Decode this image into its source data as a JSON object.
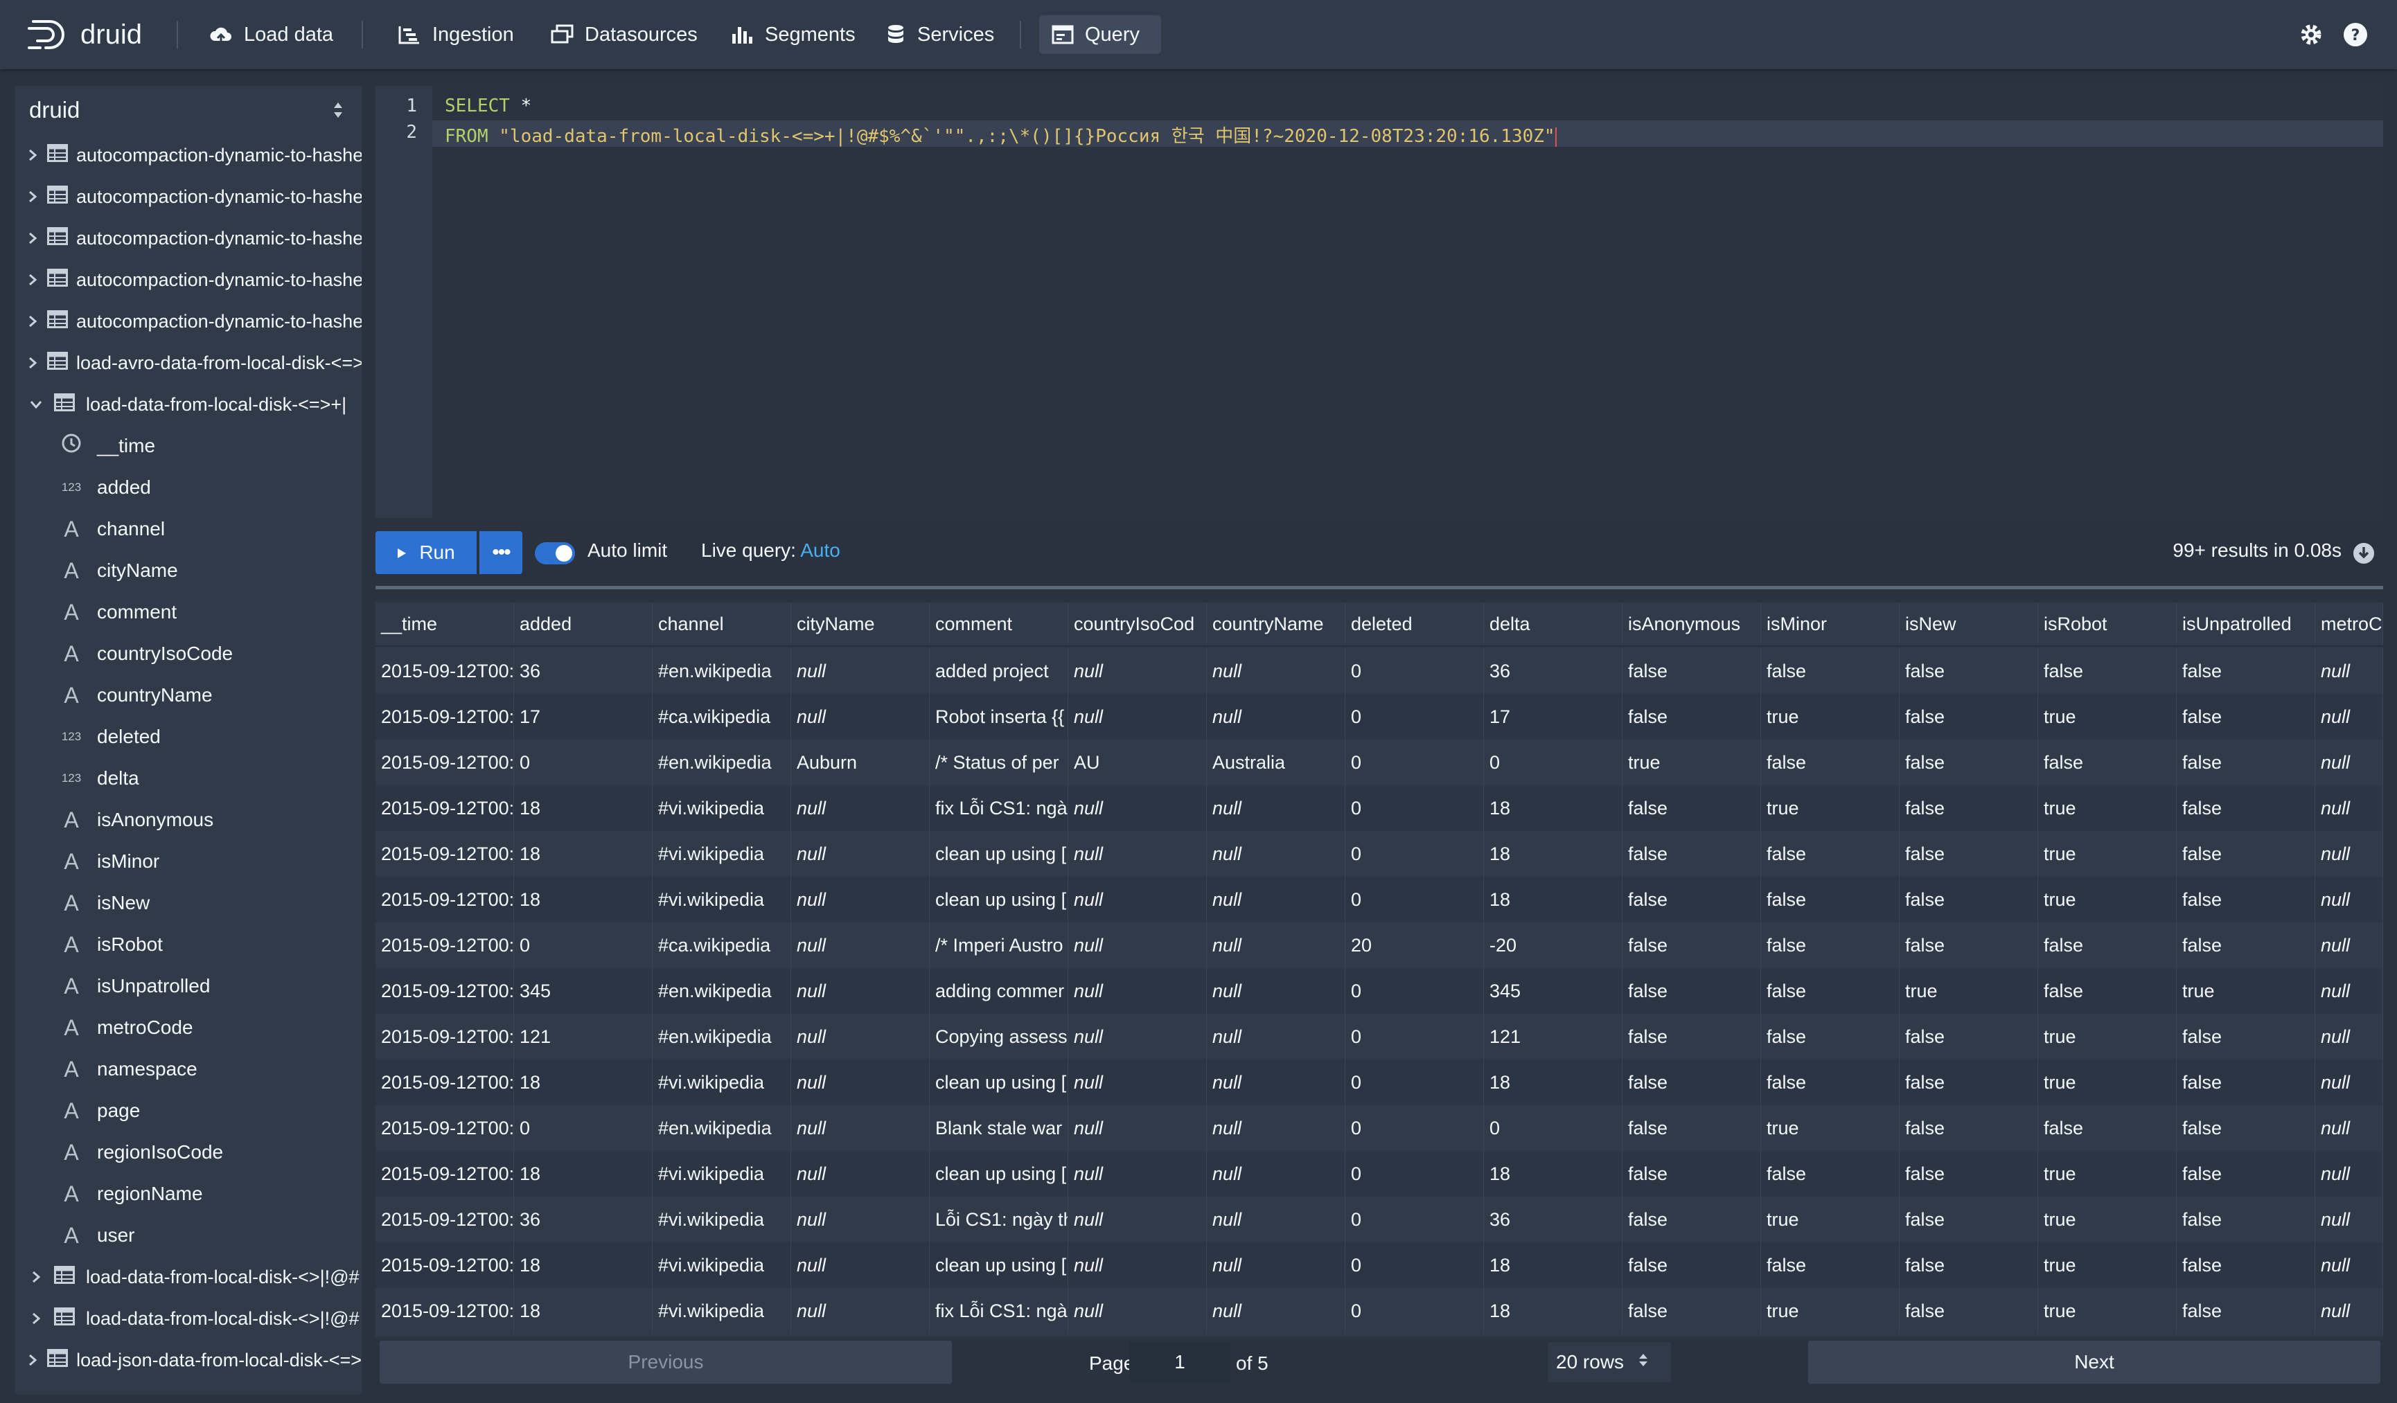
{
  "nav": {
    "logo": "druid",
    "items": [
      "Load data",
      "Ingestion",
      "Datasources",
      "Segments",
      "Services",
      "Query"
    ],
    "active": "Query"
  },
  "sidebar": {
    "title": "druid",
    "datasources_top": [
      "autocompaction-dynamic-to-hashed",
      "autocompaction-dynamic-to-hashed",
      "autocompaction-dynamic-to-hashed",
      "autocompaction-dynamic-to-hashed",
      "autocompaction-dynamic-to-hashed",
      "load-avro-data-from-local-disk-<=>",
      "load-data-from-local-disk-<=>+|"
    ],
    "columns": [
      {
        "name": "__time",
        "type": "time"
      },
      {
        "name": "added",
        "type": "num"
      },
      {
        "name": "channel",
        "type": "str"
      },
      {
        "name": "cityName",
        "type": "str"
      },
      {
        "name": "comment",
        "type": "str"
      },
      {
        "name": "countryIsoCode",
        "type": "str"
      },
      {
        "name": "countryName",
        "type": "str"
      },
      {
        "name": "deleted",
        "type": "num"
      },
      {
        "name": "delta",
        "type": "num"
      },
      {
        "name": "isAnonymous",
        "type": "str"
      },
      {
        "name": "isMinor",
        "type": "str"
      },
      {
        "name": "isNew",
        "type": "str"
      },
      {
        "name": "isRobot",
        "type": "str"
      },
      {
        "name": "isUnpatrolled",
        "type": "str"
      },
      {
        "name": "metroCode",
        "type": "str"
      },
      {
        "name": "namespace",
        "type": "str"
      },
      {
        "name": "page",
        "type": "str"
      },
      {
        "name": "regionIsoCode",
        "type": "str"
      },
      {
        "name": "regionName",
        "type": "str"
      },
      {
        "name": "user",
        "type": "str"
      }
    ],
    "datasources_bottom": [
      "load-data-from-local-disk-<>|!@#",
      "load-data-from-local-disk-<>|!@#",
      "load-json-data-from-local-disk-<=>"
    ]
  },
  "editor": {
    "line1_kw": "SELECT",
    "line1_rest": " *",
    "line2_kw": "FROM",
    "line2_str": " \"load-data-from-local-disk-<=>+|!@#$%^&`'\"\".,:;\\*()[]{}Россия 한국 中国!?~2020-12-08T23:20:16.130Z\""
  },
  "toolbar": {
    "run_label": "Run",
    "more_label": "•••",
    "auto_limit_label": "Auto limit",
    "live_query_label": "Live query:",
    "live_query_value": "Auto",
    "results_summary": "99+ results in 0.08s"
  },
  "table": {
    "columns": [
      "__time",
      "added",
      "channel",
      "cityName",
      "comment",
      "countryIsoCod",
      "countryName",
      "deleted",
      "delta",
      "isAnonymous",
      "isMinor",
      "isNew",
      "isRobot",
      "isUnpatrolled",
      "metroC"
    ],
    "rows": [
      [
        "2015-09-12T00:",
        "36",
        "#en.wikipedia",
        "null",
        "added project",
        "null",
        "null",
        "0",
        "36",
        "false",
        "false",
        "false",
        "false",
        "false",
        "null"
      ],
      [
        "2015-09-12T00:",
        "17",
        "#ca.wikipedia",
        "null",
        "Robot inserta {{",
        "null",
        "null",
        "0",
        "17",
        "false",
        "true",
        "false",
        "true",
        "false",
        "null"
      ],
      [
        "2015-09-12T00:",
        "0",
        "#en.wikipedia",
        "Auburn",
        "/* Status of per",
        "AU",
        "Australia",
        "0",
        "0",
        "true",
        "false",
        "false",
        "false",
        "false",
        "null"
      ],
      [
        "2015-09-12T00:",
        "18",
        "#vi.wikipedia",
        "null",
        "fix Lỗi CS1: ngày",
        "null",
        "null",
        "0",
        "18",
        "false",
        "true",
        "false",
        "true",
        "false",
        "null"
      ],
      [
        "2015-09-12T00:",
        "18",
        "#vi.wikipedia",
        "null",
        "clean up using [",
        "null",
        "null",
        "0",
        "18",
        "false",
        "false",
        "false",
        "true",
        "false",
        "null"
      ],
      [
        "2015-09-12T00:",
        "18",
        "#vi.wikipedia",
        "null",
        "clean up using [",
        "null",
        "null",
        "0",
        "18",
        "false",
        "false",
        "false",
        "true",
        "false",
        "null"
      ],
      [
        "2015-09-12T00:",
        "0",
        "#ca.wikipedia",
        "null",
        "/* Imperi Austro",
        "null",
        "null",
        "20",
        "-20",
        "false",
        "false",
        "false",
        "false",
        "false",
        "null"
      ],
      [
        "2015-09-12T00:",
        "345",
        "#en.wikipedia",
        "null",
        "adding commer",
        "null",
        "null",
        "0",
        "345",
        "false",
        "false",
        "true",
        "false",
        "true",
        "null"
      ],
      [
        "2015-09-12T00:",
        "121",
        "#en.wikipedia",
        "null",
        "Copying assessi",
        "null",
        "null",
        "0",
        "121",
        "false",
        "false",
        "false",
        "true",
        "false",
        "null"
      ],
      [
        "2015-09-12T00:",
        "18",
        "#vi.wikipedia",
        "null",
        "clean up using [",
        "null",
        "null",
        "0",
        "18",
        "false",
        "false",
        "false",
        "true",
        "false",
        "null"
      ],
      [
        "2015-09-12T00:",
        "0",
        "#en.wikipedia",
        "null",
        "Blank stale war",
        "null",
        "null",
        "0",
        "0",
        "false",
        "true",
        "false",
        "false",
        "false",
        "null"
      ],
      [
        "2015-09-12T00:",
        "18",
        "#vi.wikipedia",
        "null",
        "clean up using [",
        "null",
        "null",
        "0",
        "18",
        "false",
        "false",
        "false",
        "true",
        "false",
        "null"
      ],
      [
        "2015-09-12T00:",
        "36",
        "#vi.wikipedia",
        "null",
        "Lỗi CS1: ngày th",
        "null",
        "null",
        "0",
        "36",
        "false",
        "true",
        "false",
        "true",
        "false",
        "null"
      ],
      [
        "2015-09-12T00:",
        "18",
        "#vi.wikipedia",
        "null",
        "clean up using [",
        "null",
        "null",
        "0",
        "18",
        "false",
        "false",
        "false",
        "true",
        "false",
        "null"
      ],
      [
        "2015-09-12T00:",
        "18",
        "#vi.wikipedia",
        "null",
        "fix Lỗi CS1: ngày",
        "null",
        "null",
        "0",
        "18",
        "false",
        "true",
        "false",
        "true",
        "false",
        "null"
      ]
    ]
  },
  "pagination": {
    "previous": "Previous",
    "page_label": "Page",
    "page_value": "1",
    "of_label": "of 5",
    "rows_select": "20 rows",
    "next": "Next"
  },
  "colors": {
    "accent": "#2d72d2",
    "background": "#2a3240",
    "panel": "#303a49",
    "link": "#48aff0"
  }
}
